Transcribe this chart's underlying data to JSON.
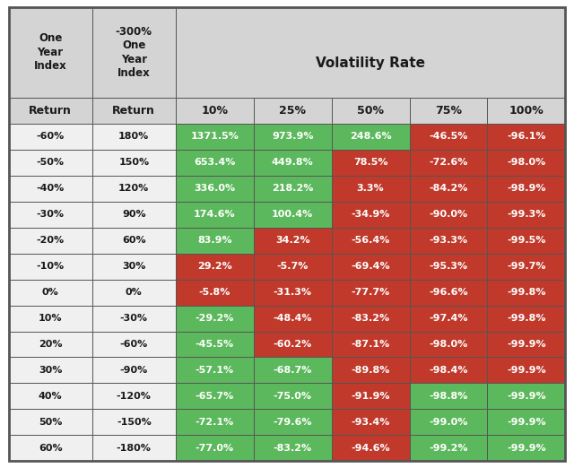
{
  "rows": [
    [
      "-60%",
      "180%",
      "1371.5%",
      "973.9%",
      "248.6%",
      "-46.5%",
      "-96.1%"
    ],
    [
      "-50%",
      "150%",
      "653.4%",
      "449.8%",
      "78.5%",
      "-72.6%",
      "-98.0%"
    ],
    [
      "-40%",
      "120%",
      "336.0%",
      "218.2%",
      "3.3%",
      "-84.2%",
      "-98.9%"
    ],
    [
      "-30%",
      "90%",
      "174.6%",
      "100.4%",
      "-34.9%",
      "-90.0%",
      "-99.3%"
    ],
    [
      "-20%",
      "60%",
      "83.9%",
      "34.2%",
      "-56.4%",
      "-93.3%",
      "-99.5%"
    ],
    [
      "-10%",
      "30%",
      "29.2%",
      "-5.7%",
      "-69.4%",
      "-95.3%",
      "-99.7%"
    ],
    [
      "0%",
      "0%",
      "-5.8%",
      "-31.3%",
      "-77.7%",
      "-96.6%",
      "-99.8%"
    ],
    [
      "10%",
      "-30%",
      "-29.2%",
      "-48.4%",
      "-83.2%",
      "-97.4%",
      "-99.8%"
    ],
    [
      "20%",
      "-60%",
      "-45.5%",
      "-60.2%",
      "-87.1%",
      "-98.0%",
      "-99.9%"
    ],
    [
      "30%",
      "-90%",
      "-57.1%",
      "-68.7%",
      "-89.8%",
      "-98.4%",
      "-99.9%"
    ],
    [
      "40%",
      "-120%",
      "-65.7%",
      "-75.0%",
      "-91.9%",
      "-98.8%",
      "-99.9%"
    ],
    [
      "50%",
      "-150%",
      "-72.1%",
      "-79.6%",
      "-93.4%",
      "-99.0%",
      "-99.9%"
    ],
    [
      "60%",
      "-180%",
      "-77.0%",
      "-83.2%",
      "-94.6%",
      "-99.2%",
      "-99.9%"
    ]
  ],
  "cell_colors": [
    [
      "W",
      "W",
      "G",
      "G",
      "G",
      "R",
      "R"
    ],
    [
      "W",
      "W",
      "G",
      "G",
      "R",
      "R",
      "R"
    ],
    [
      "W",
      "W",
      "G",
      "G",
      "R",
      "R",
      "R"
    ],
    [
      "W",
      "W",
      "G",
      "G",
      "R",
      "R",
      "R"
    ],
    [
      "W",
      "W",
      "G",
      "R",
      "R",
      "R",
      "R"
    ],
    [
      "W",
      "W",
      "R",
      "R",
      "R",
      "R",
      "R"
    ],
    [
      "W",
      "W",
      "R",
      "R",
      "R",
      "R",
      "R"
    ],
    [
      "W",
      "W",
      "G",
      "R",
      "R",
      "R",
      "R"
    ],
    [
      "W",
      "W",
      "G",
      "R",
      "R",
      "R",
      "R"
    ],
    [
      "W",
      "W",
      "G",
      "G",
      "R",
      "R",
      "R"
    ],
    [
      "W",
      "W",
      "G",
      "G",
      "R",
      "G",
      "G"
    ],
    [
      "W",
      "W",
      "G",
      "G",
      "R",
      "G",
      "G"
    ],
    [
      "W",
      "W",
      "G",
      "G",
      "R",
      "G",
      "G"
    ]
  ],
  "green_color": "#5cb85c",
  "red_color": "#c0392b",
  "header_bg": "#d4d4d4",
  "white_bg": "#f0f0f0",
  "border_color": "#555555",
  "text_light": "#ffffff",
  "text_dark": "#1a1a1a",
  "sub_labels": [
    "Return",
    "Return",
    "10%",
    "25%",
    "50%",
    "75%",
    "100%"
  ],
  "volatility_label": "Volatility Rate",
  "col0_header": "One\nYear\nIndex",
  "col1_header": "-300%\nOne\nYear\nIndex",
  "figsize": [
    6.4,
    5.22
  ],
  "dpi": 100
}
